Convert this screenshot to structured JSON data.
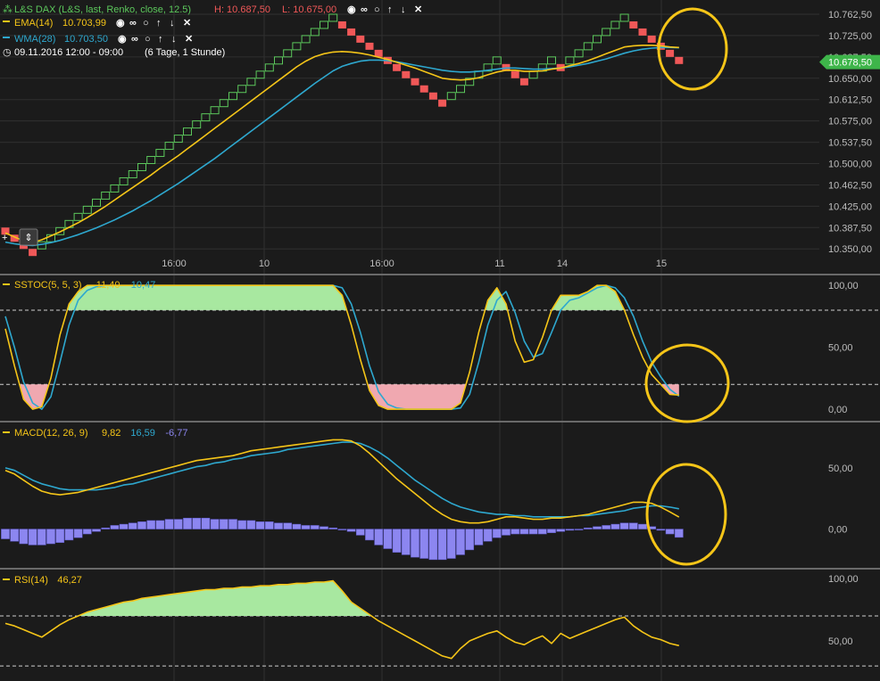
{
  "colors": {
    "background": "#1b1b1b",
    "grid": "#303030",
    "separator": "#6a6a6a",
    "axis_text": "#bdbdbd",
    "renko_up": "#5cc85c",
    "renko_down": "#f05858",
    "ema": "#f5c518",
    "wma": "#2ea8cf",
    "histogram": "#8c86f0",
    "overbought_fill": "#a8e8a0",
    "oversold_fill": "#f0a8b0",
    "rsi_line": "#f5c518",
    "price_tag": "#3eb54a",
    "circle": "#f5c518",
    "header_text": "#d8d8d8"
  },
  "header": {
    "title": "L&S DAX (L&S, last, Renko, close, 12.5)",
    "high_label": "H: 10.687,50",
    "low_label": "L: 10.675,00",
    "ema_label": "EMA(14)",
    "ema_value": "10.703,99",
    "wma_label": "WMA(28)",
    "wma_value": "10.703,50",
    "time_range": "09.11.2016 12:00 - 09:00",
    "range_desc": "(6 Tage, 1 Stunde)",
    "icons": [
      "eye-icon",
      "link-icon",
      "circle-icon",
      "arrow-up-icon",
      "arrow-down-icon",
      "close-icon"
    ]
  },
  "price_tag": "10.678,50",
  "x_labels": [
    "16:00",
    "10",
    "16:00",
    "11",
    "14",
    "15"
  ],
  "chart_data": [
    {
      "type": "renko",
      "panel": "price",
      "box_size": 12.5,
      "y_ticks": [
        "10.762,50",
        "10.725,00",
        "10.687,50",
        "10.650,00",
        "10.612,50",
        "10.575,00",
        "10.537,50",
        "10.500,00",
        "10.462,50",
        "10.425,00",
        "10.387,50",
        "10.350,00"
      ],
      "ylim": [
        10330,
        10775
      ],
      "bricks": [
        {
          "dir": "down",
          "top": 10387.5
        },
        {
          "dir": "down",
          "top": 10375
        },
        {
          "dir": "down",
          "top": 10362.5
        },
        {
          "dir": "down",
          "top": 10350
        },
        {
          "dir": "up",
          "top": 10362.5
        },
        {
          "dir": "up",
          "top": 10375
        },
        {
          "dir": "up",
          "top": 10387.5
        },
        {
          "dir": "up",
          "top": 10400
        },
        {
          "dir": "up",
          "top": 10412.5
        },
        {
          "dir": "up",
          "top": 10425
        },
        {
          "dir": "up",
          "top": 10437.5
        },
        {
          "dir": "up",
          "top": 10450
        },
        {
          "dir": "up",
          "top": 10462.5
        },
        {
          "dir": "up",
          "top": 10475
        },
        {
          "dir": "up",
          "top": 10487.5
        },
        {
          "dir": "up",
          "top": 10500
        },
        {
          "dir": "up",
          "top": 10512.5
        },
        {
          "dir": "up",
          "top": 10525
        },
        {
          "dir": "up",
          "top": 10537.5
        },
        {
          "dir": "up",
          "top": 10550
        },
        {
          "dir": "up",
          "top": 10562.5
        },
        {
          "dir": "up",
          "top": 10575
        },
        {
          "dir": "up",
          "top": 10587.5
        },
        {
          "dir": "up",
          "top": 10600
        },
        {
          "dir": "up",
          "top": 10612.5
        },
        {
          "dir": "up",
          "top": 10625
        },
        {
          "dir": "up",
          "top": 10637.5
        },
        {
          "dir": "up",
          "top": 10650
        },
        {
          "dir": "up",
          "top": 10662.5
        },
        {
          "dir": "up",
          "top": 10675
        },
        {
          "dir": "up",
          "top": 10687.5
        },
        {
          "dir": "up",
          "top": 10700
        },
        {
          "dir": "up",
          "top": 10712.5
        },
        {
          "dir": "up",
          "top": 10725
        },
        {
          "dir": "up",
          "top": 10737.5
        },
        {
          "dir": "up",
          "top": 10750
        },
        {
          "dir": "up",
          "top": 10762.5
        },
        {
          "dir": "down",
          "top": 10750
        },
        {
          "dir": "down",
          "top": 10737.5
        },
        {
          "dir": "down",
          "top": 10725
        },
        {
          "dir": "down",
          "top": 10712.5
        },
        {
          "dir": "down",
          "top": 10700
        },
        {
          "dir": "down",
          "top": 10687.5
        },
        {
          "dir": "down",
          "top": 10675
        },
        {
          "dir": "down",
          "top": 10662.5
        },
        {
          "dir": "down",
          "top": 10650
        },
        {
          "dir": "down",
          "top": 10637.5
        },
        {
          "dir": "down",
          "top": 10625
        },
        {
          "dir": "down",
          "top": 10612.5
        },
        {
          "dir": "up",
          "top": 10625
        },
        {
          "dir": "up",
          "top": 10637.5
        },
        {
          "dir": "up",
          "top": 10650
        },
        {
          "dir": "up",
          "top": 10662.5
        },
        {
          "dir": "up",
          "top": 10675
        },
        {
          "dir": "up",
          "top": 10687.5
        },
        {
          "dir": "down",
          "top": 10675
        },
        {
          "dir": "down",
          "top": 10662.5
        },
        {
          "dir": "down",
          "top": 10650
        },
        {
          "dir": "up",
          "top": 10662.5
        },
        {
          "dir": "up",
          "top": 10675
        },
        {
          "dir": "up",
          "top": 10687.5
        },
        {
          "dir": "down",
          "top": 10675
        },
        {
          "dir": "up",
          "top": 10687.5
        },
        {
          "dir": "up",
          "top": 10700
        },
        {
          "dir": "up",
          "top": 10712.5
        },
        {
          "dir": "up",
          "top": 10725
        },
        {
          "dir": "up",
          "top": 10737.5
        },
        {
          "dir": "up",
          "top": 10750
        },
        {
          "dir": "up",
          "top": 10762.5
        },
        {
          "dir": "down",
          "top": 10750
        },
        {
          "dir": "down",
          "top": 10737.5
        },
        {
          "dir": "down",
          "top": 10725
        },
        {
          "dir": "down",
          "top": 10712.5
        },
        {
          "dir": "down",
          "top": 10700
        },
        {
          "dir": "down",
          "top": 10687.5
        }
      ],
      "ema": [
        10378,
        10371,
        10364,
        10361,
        10366,
        10373,
        10380,
        10388,
        10396,
        10405,
        10415,
        10425,
        10436,
        10447,
        10458,
        10469,
        10480,
        10492,
        10503,
        10514,
        10526,
        10538,
        10550,
        10562,
        10574,
        10586,
        10598,
        10610,
        10622,
        10634,
        10646,
        10658,
        10670,
        10680,
        10688,
        10693,
        10696,
        10697,
        10696,
        10694,
        10691,
        10687,
        10683,
        10678,
        10673,
        10668,
        10662,
        10656,
        10650,
        10648,
        10647,
        10648,
        10651,
        10656,
        10661,
        10664,
        10664,
        10662,
        10662,
        10663,
        10666,
        10668,
        10672,
        10676,
        10681,
        10687,
        10693,
        10699,
        10705,
        10707,
        10708,
        10708,
        10707,
        10705,
        10703.99
      ],
      "wma": [
        10362,
        10359,
        10357,
        10356,
        10358,
        10361,
        10365,
        10370,
        10375,
        10381,
        10387,
        10394,
        10401,
        10409,
        10417,
        10426,
        10435,
        10445,
        10455,
        10465,
        10476,
        10487,
        10498,
        10509,
        10521,
        10533,
        10545,
        10557,
        10569,
        10581,
        10593,
        10605,
        10617,
        10629,
        10641,
        10652,
        10663,
        10671,
        10676,
        10680,
        10682,
        10682,
        10681,
        10679,
        10676,
        10673,
        10670,
        10667,
        10664,
        10662,
        10661,
        10661,
        10662,
        10664,
        10666,
        10668,
        10668,
        10667,
        10666,
        10666,
        10667,
        10668,
        10670,
        10673,
        10676,
        10680,
        10684,
        10689,
        10694,
        10698,
        10701,
        10703,
        10704,
        10704,
        10703.5
      ]
    },
    {
      "type": "line",
      "panel": "sstoc",
      "name": "SSTOC(5, 5, 3)",
      "values_label": [
        "11,40",
        "10,47"
      ],
      "y_ticks": [
        "100,00",
        "50,00",
        "0,00"
      ],
      "ylim": [
        -5,
        103
      ],
      "levels": [
        80,
        20
      ],
      "fast": [
        65,
        35,
        8,
        0,
        2,
        25,
        60,
        85,
        95,
        100,
        100,
        100,
        100,
        100,
        100,
        100,
        100,
        100,
        100,
        100,
        100,
        100,
        100,
        100,
        100,
        100,
        100,
        100,
        100,
        100,
        100,
        100,
        100,
        100,
        100,
        100,
        100,
        92,
        68,
        40,
        15,
        3,
        0,
        0,
        0,
        0,
        0,
        0,
        0,
        0,
        5,
        30,
        62,
        88,
        98,
        85,
        55,
        38,
        40,
        58,
        80,
        92,
        92,
        92,
        95,
        100,
        100,
        95,
        80,
        60,
        42,
        28,
        20,
        12,
        11.4
      ],
      "slow": [
        75,
        50,
        22,
        5,
        0,
        10,
        38,
        68,
        88,
        96,
        99,
        100,
        100,
        100,
        100,
        100,
        100,
        100,
        100,
        100,
        100,
        100,
        100,
        100,
        100,
        100,
        100,
        100,
        100,
        100,
        100,
        100,
        100,
        100,
        100,
        100,
        100,
        98,
        85,
        62,
        35,
        14,
        4,
        1,
        0,
        0,
        0,
        0,
        0,
        0,
        1,
        12,
        38,
        68,
        88,
        95,
        78,
        55,
        42,
        45,
        62,
        80,
        88,
        90,
        94,
        98,
        100,
        98,
        90,
        75,
        55,
        38,
        26,
        16,
        10.47
      ]
    },
    {
      "type": "bar+line",
      "panel": "macd",
      "name": "MACD(12, 26, 9)",
      "values_label": [
        "9,82",
        "16,59",
        "-6,77"
      ],
      "y_ticks": [
        "50,00",
        "0,00"
      ],
      "ylim": [
        -28,
        82
      ],
      "macd": [
        48,
        45,
        40,
        35,
        31,
        29,
        28,
        29,
        30,
        32,
        34,
        36,
        38,
        40,
        42,
        44,
        46,
        48,
        50,
        52,
        54,
        56,
        57,
        58,
        59,
        60,
        62,
        64,
        65,
        66,
        67,
        68,
        69,
        70,
        71,
        72,
        73,
        73,
        72,
        68,
        62,
        55,
        48,
        41,
        35,
        29,
        23,
        17,
        12,
        8,
        6,
        5,
        5,
        6,
        8,
        10,
        10,
        9,
        8,
        8,
        9,
        9,
        10,
        11,
        12,
        14,
        16,
        18,
        20,
        22,
        22,
        21,
        18,
        14,
        9.82
      ],
      "signal": [
        50,
        48,
        44,
        40,
        37,
        35,
        33,
        32,
        32,
        32,
        32,
        33,
        34,
        36,
        37,
        39,
        41,
        43,
        45,
        47,
        49,
        51,
        52,
        54,
        55,
        57,
        58,
        60,
        61,
        62,
        63,
        65,
        66,
        67,
        68,
        69,
        70,
        71,
        71,
        70,
        67,
        63,
        58,
        52,
        46,
        40,
        35,
        30,
        25,
        21,
        18,
        16,
        14,
        13,
        12,
        12,
        11,
        11,
        10,
        10,
        10,
        10,
        10,
        11,
        11,
        12,
        13,
        14,
        15,
        17,
        18,
        19,
        19,
        18,
        16.59
      ],
      "hist": [
        -8,
        -10,
        -12,
        -13,
        -13,
        -12,
        -11,
        -9,
        -7,
        -4,
        -2,
        1,
        3,
        4,
        5,
        6,
        7,
        7,
        8,
        8,
        9,
        9,
        9,
        8,
        8,
        8,
        7,
        7,
        6,
        6,
        5,
        5,
        4,
        3,
        3,
        2,
        1,
        0,
        -2,
        -5,
        -9,
        -13,
        -16,
        -19,
        -21,
        -23,
        -24,
        -25,
        -25,
        -24,
        -21,
        -17,
        -13,
        -10,
        -7,
        -5,
        -4,
        -4,
        -4,
        -4,
        -3,
        -2,
        -1,
        0,
        1,
        2,
        3,
        4,
        5,
        5,
        4,
        2,
        -1,
        -4,
        -6.77
      ]
    },
    {
      "type": "line",
      "panel": "rsi",
      "name": "RSI(14)",
      "values_label": [
        "46,27"
      ],
      "y_ticks": [
        "100,00",
        "50,00"
      ],
      "ylim": [
        18,
        102
      ],
      "levels": [
        70,
        30
      ],
      "rsi": [
        64,
        62,
        59,
        56,
        53,
        58,
        63,
        67,
        70,
        73,
        75,
        77,
        79,
        81,
        82,
        84,
        85,
        86,
        87,
        88,
        89,
        90,
        91,
        91,
        92,
        92,
        93,
        93,
        94,
        94,
        95,
        95,
        96,
        96,
        97,
        97,
        98,
        90,
        81,
        76,
        71,
        66,
        62,
        58,
        54,
        50,
        46,
        42,
        38,
        36,
        44,
        50,
        53,
        56,
        58,
        53,
        49,
        47,
        51,
        54,
        48,
        56,
        52,
        55,
        58,
        61,
        64,
        67,
        69,
        62,
        57,
        53,
        51,
        48,
        46.27
      ]
    }
  ]
}
